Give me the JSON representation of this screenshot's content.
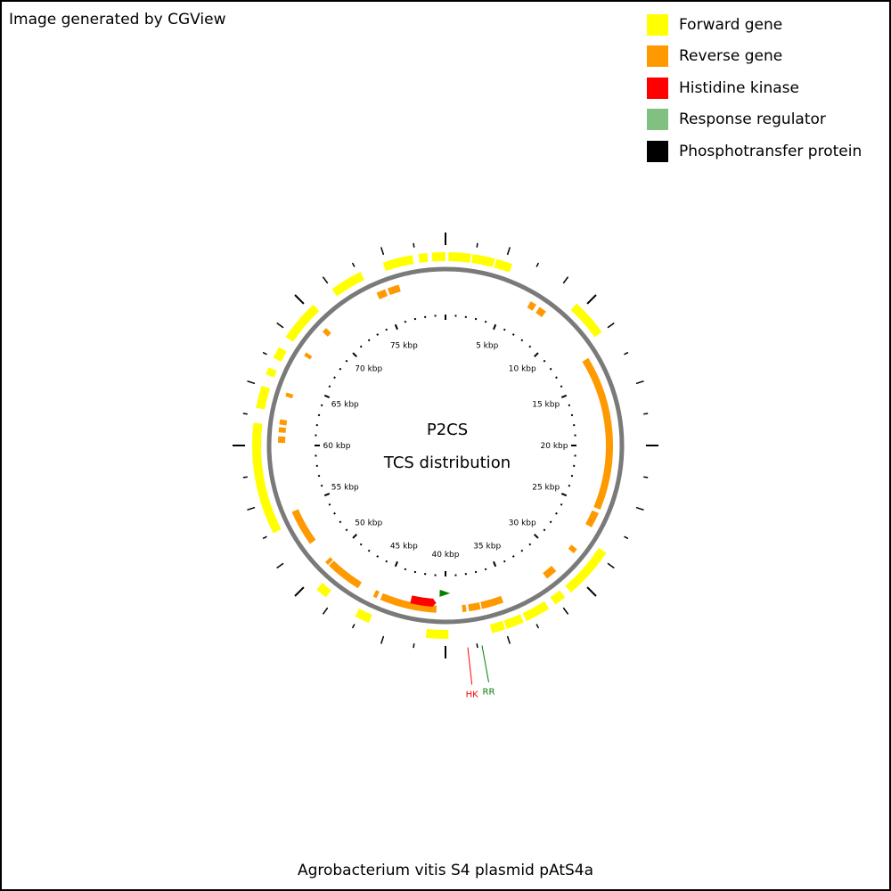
{
  "credit": "Image generated by CGView",
  "footer": "Agrobacterium vitis S4 plasmid pAtS4a",
  "center": {
    "line1": "P2CS",
    "line2": "TCS distribution"
  },
  "legend": [
    {
      "label": "Forward gene",
      "color": "#ffff00"
    },
    {
      "label": "Reverse gene",
      "color": "#ff9900"
    },
    {
      "label": "Histidine kinase",
      "color": "#ff0000"
    },
    {
      "label": "Response regulator",
      "color": "#80c080"
    },
    {
      "label": "Phosphotransfer protein",
      "color": "#000000"
    }
  ],
  "chart_data": {
    "type": "circular-genome-map",
    "sequence_length_kbp": 80,
    "tick_labels": [
      "5 kbp",
      "10 kbp",
      "15 kbp",
      "20 kbp",
      "25 kbp",
      "30 kbp",
      "35 kbp",
      "40 kbp",
      "45 kbp",
      "50 kbp",
      "55 kbp",
      "60 kbp",
      "65 kbp",
      "70 kbp",
      "75 kbp"
    ],
    "forward_genes_kbp": [
      [
        0.2,
        1.7
      ],
      [
        1.8,
        3.3
      ],
      [
        3.4,
        4.5
      ],
      [
        9.5,
        12.0
      ],
      [
        27.5,
        31.0
      ],
      [
        31.5,
        32.3
      ],
      [
        32.8,
        34.5
      ],
      [
        34.7,
        35.9
      ],
      [
        36.0,
        36.9
      ],
      [
        39.8,
        41.3
      ],
      [
        45.2,
        46.2
      ],
      [
        48.5,
        49.3
      ],
      [
        54.0,
        61.5
      ],
      [
        62.5,
        64.0
      ],
      [
        64.8,
        65.3
      ],
      [
        66.0,
        66.8
      ],
      [
        67.6,
        70.4
      ],
      [
        72.0,
        74.2
      ],
      [
        75.8,
        77.8
      ],
      [
        78.2,
        78.8
      ],
      [
        79.1,
        80.0
      ]
    ],
    "reverse_genes_kbp": [
      [
        6.8,
        7.3
      ],
      [
        7.6,
        8.2
      ],
      [
        13.0,
        25.0
      ],
      [
        25.3,
        26.5
      ],
      [
        28.5,
        28.9
      ],
      [
        30.8,
        31.7
      ],
      [
        35.5,
        37.2
      ],
      [
        37.3,
        38.2
      ],
      [
        38.4,
        38.7
      ],
      [
        40.7,
        45.1
      ],
      [
        45.4,
        45.7
      ],
      [
        47.0,
        49.8
      ],
      [
        49.9,
        50.2
      ],
      [
        52.0,
        54.8
      ],
      [
        60.2,
        60.7
      ],
      [
        61.0,
        61.4
      ],
      [
        61.6,
        62.0
      ],
      [
        63.8,
        64.1
      ],
      [
        67.2,
        67.5
      ],
      [
        69.5,
        69.9
      ],
      [
        74.6,
        75.3
      ],
      [
        75.5,
        76.4
      ]
    ],
    "histidine_kinases_kbp": [
      [
        41.0,
        42.8
      ]
    ],
    "response_regulators_kbp": [
      [
        39.6,
        40.5
      ]
    ],
    "phosphotransfer_proteins_kbp": [],
    "annotations": [
      {
        "label": "HK",
        "position_kbp": 38.6,
        "color": "#ff0000"
      },
      {
        "label": "RR",
        "position_kbp": 37.7,
        "color": "#008000"
      }
    ]
  }
}
